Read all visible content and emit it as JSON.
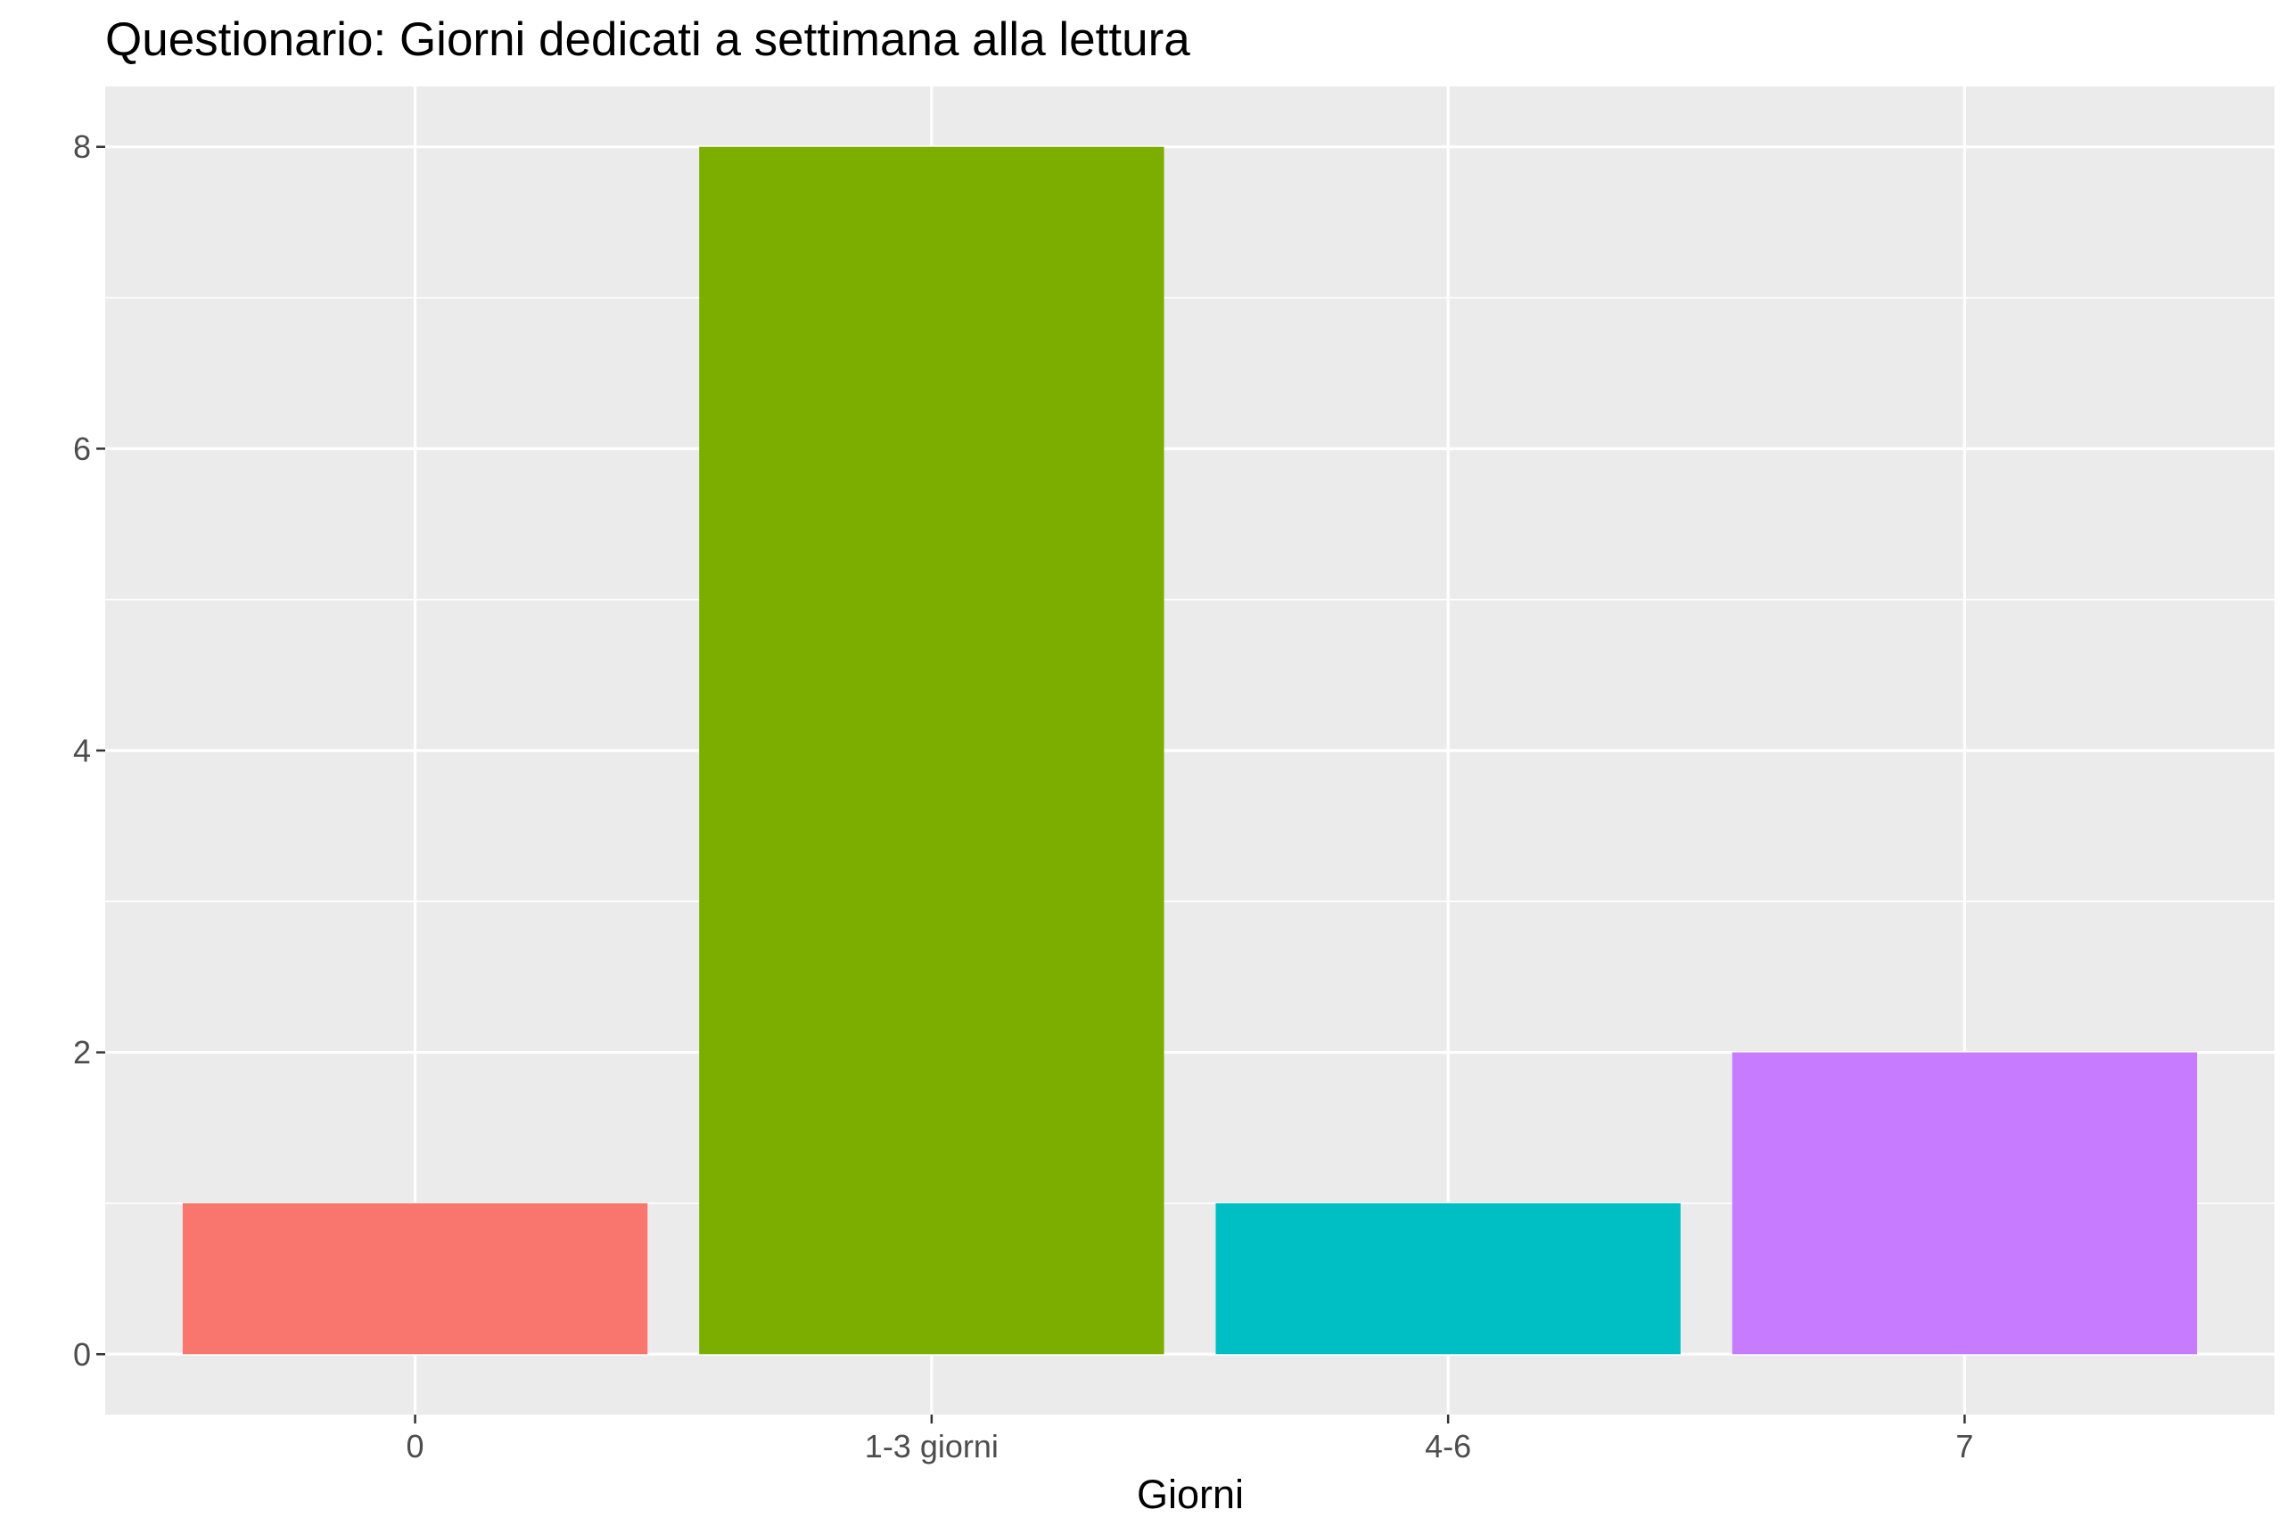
{
  "chart_data": {
    "type": "bar",
    "title": "Questionario: Giorni dedicati a settimana alla lettura",
    "xlabel": "Giorni",
    "ylabel": "",
    "categories": [
      "0",
      "1-3 giorni",
      "4-6",
      "7"
    ],
    "values": [
      1,
      8,
      1,
      2
    ],
    "colors": [
      "#F8766D",
      "#7CAE00",
      "#00BFC4",
      "#C77CFF"
    ],
    "ylim": [
      -0.4,
      8.4
    ],
    "yticks": [
      0,
      2,
      4,
      6,
      8
    ],
    "grid": true,
    "legend": "none",
    "panel_background": "#EBEBEB",
    "grid_color": "#FFFFFF"
  }
}
